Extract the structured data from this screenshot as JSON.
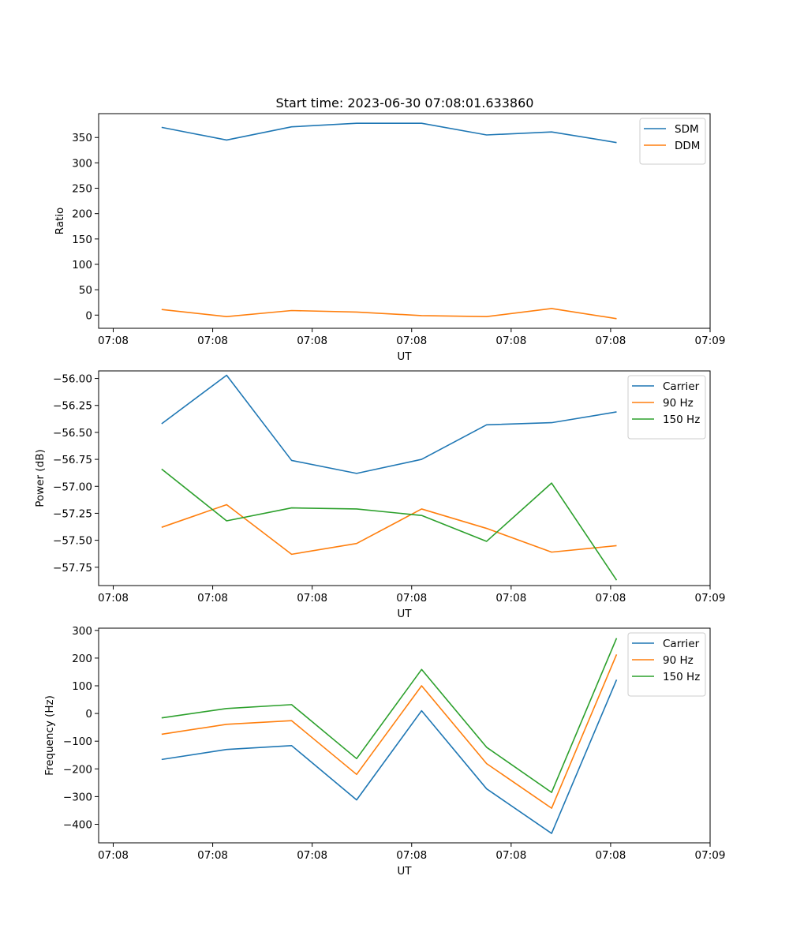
{
  "figure": {
    "title": "Start time: 2023-06-30 07:08:01.633860"
  },
  "colors": {
    "blue": "#1f77b4",
    "orange": "#ff7f0e",
    "green": "#2ca02c"
  },
  "chart_data": [
    {
      "type": "line",
      "title": "Start time: 2023-06-30 07:08:01.633860",
      "xlabel": "UT",
      "ylabel": "Ratio",
      "xlim": [
        -0.22,
        9.0
      ],
      "ylim": [
        -26,
        397
      ],
      "x_ticks": [
        0,
        1.5,
        3,
        4.5,
        6,
        7.5,
        9
      ],
      "x_tick_labels": [
        "07:08",
        "07:08",
        "07:08",
        "07:08",
        "07:08",
        "07:08",
        "07:09"
      ],
      "y_ticks": [
        0,
        50,
        100,
        150,
        200,
        250,
        300,
        350
      ],
      "y_tick_labels": [
        "0",
        "50",
        "100",
        "150",
        "200",
        "250",
        "300",
        "350"
      ],
      "x": [
        0.73,
        1.71,
        2.69,
        3.67,
        4.65,
        5.63,
        6.61,
        7.59
      ],
      "series": [
        {
          "name": "SDM",
          "color": "#1f77b4",
          "values": [
            370,
            345,
            371,
            378,
            378,
            355,
            361,
            340
          ]
        },
        {
          "name": "DDM",
          "color": "#ff7f0e",
          "values": [
            11,
            -3,
            9,
            6,
            -1,
            -3,
            13,
            -7
          ]
        }
      ],
      "grid": false,
      "legend_position": "top-right"
    },
    {
      "type": "line",
      "title": "",
      "xlabel": "UT",
      "ylabel": "Power (dB)",
      "xlim": [
        -0.22,
        9.0
      ],
      "ylim": [
        -57.92,
        -55.93
      ],
      "x_ticks": [
        0,
        1.5,
        3,
        4.5,
        6,
        7.5,
        9
      ],
      "x_tick_labels": [
        "07:08",
        "07:08",
        "07:08",
        "07:08",
        "07:08",
        "07:08",
        "07:09"
      ],
      "y_ticks": [
        -57.75,
        -57.5,
        -57.25,
        -57.0,
        -56.75,
        -56.5,
        -56.25,
        -56.0
      ],
      "y_tick_labels": [
        "−57.75",
        "−57.50",
        "−57.25",
        "−57.00",
        "−56.75",
        "−56.50",
        "−56.25",
        "−56.00"
      ],
      "x": [
        0.73,
        1.71,
        2.69,
        3.67,
        4.65,
        5.63,
        6.61,
        7.59
      ],
      "series": [
        {
          "name": "Carrier",
          "color": "#1f77b4",
          "values": [
            -56.42,
            -55.97,
            -56.76,
            -56.88,
            -56.75,
            -56.43,
            -56.41,
            -56.31
          ]
        },
        {
          "name": "90 Hz",
          "color": "#ff7f0e",
          "values": [
            -57.38,
            -57.17,
            -57.63,
            -57.53,
            -57.21,
            -57.39,
            -57.61,
            -57.55
          ]
        },
        {
          "name": "150 Hz",
          "color": "#2ca02c",
          "values": [
            -56.84,
            -57.32,
            -57.2,
            -57.21,
            -57.27,
            -57.51,
            -56.97,
            -57.87
          ]
        }
      ],
      "grid": false,
      "legend_position": "top-right"
    },
    {
      "type": "line",
      "title": "",
      "xlabel": "UT",
      "ylabel": "Frequency (Hz)",
      "xlim": [
        -0.22,
        9.0
      ],
      "ylim": [
        -467,
        308
      ],
      "x_ticks": [
        0,
        1.5,
        3,
        4.5,
        6,
        7.5,
        9
      ],
      "x_tick_labels": [
        "07:08",
        "07:08",
        "07:08",
        "07:08",
        "07:08",
        "07:08",
        "07:09"
      ],
      "y_ticks": [
        -400,
        -300,
        -200,
        -100,
        0,
        100,
        200,
        300
      ],
      "y_tick_labels": [
        "−400",
        "−300",
        "−200",
        "−100",
        "0",
        "100",
        "200",
        "300"
      ],
      "x": [
        0.73,
        1.71,
        2.69,
        3.67,
        4.65,
        5.63,
        6.61,
        7.59
      ],
      "series": [
        {
          "name": "Carrier",
          "color": "#1f77b4",
          "values": [
            -166,
            -130,
            -116,
            -312,
            10,
            -272,
            -433,
            122
          ]
        },
        {
          "name": "90 Hz",
          "color": "#ff7f0e",
          "values": [
            -75,
            -39,
            -26,
            -220,
            100,
            -181,
            -342,
            213
          ]
        },
        {
          "name": "150 Hz",
          "color": "#2ca02c",
          "values": [
            -16,
            18,
            32,
            -163,
            159,
            -122,
            -285,
            272
          ]
        }
      ],
      "grid": false,
      "legend_position": "top-right"
    }
  ]
}
